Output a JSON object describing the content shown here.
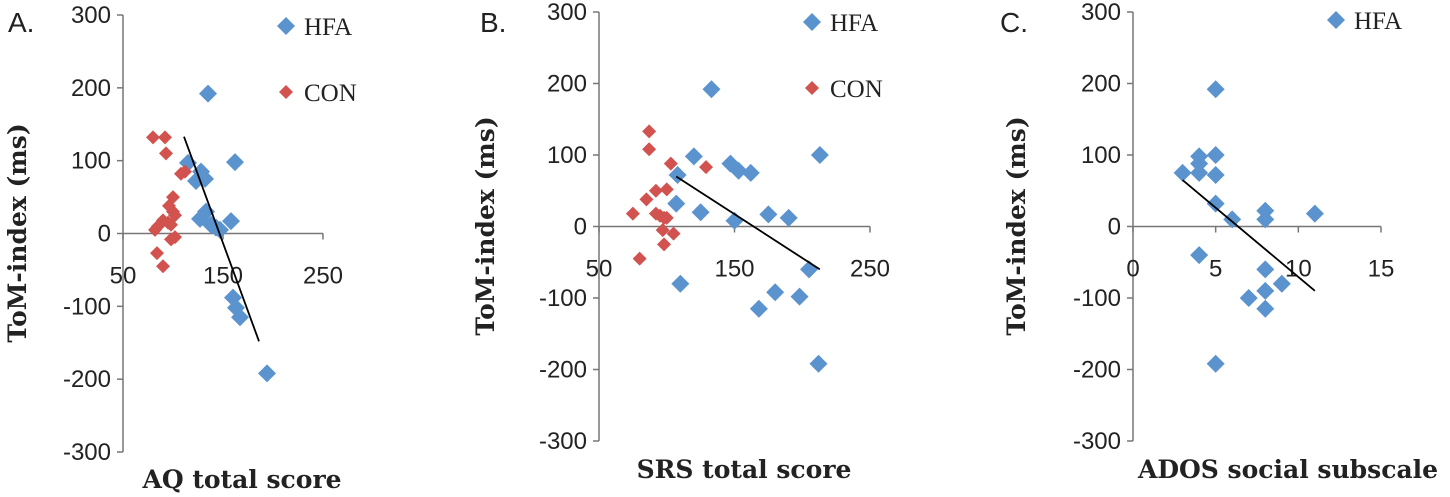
{
  "colors": {
    "HFA": "#5b93cf",
    "CON": "#d2524f",
    "axis": "#777777",
    "trend": "#000000"
  },
  "chart_data": [
    {
      "type": "scatter",
      "panel_label": "A.",
      "xlabel": "AQ total score",
      "ylabel": "ToM-index (ms)",
      "xlim": [
        50,
        250
      ],
      "ylim": [
        -300,
        300
      ],
      "xticks": [
        "50",
        "150",
        "250"
      ],
      "yticks": [
        "300",
        "200",
        "100",
        "0",
        "-100",
        "-200",
        "-300"
      ],
      "legend": [
        "HFA",
        "CON"
      ],
      "series": [
        {
          "name": "HFA",
          "points": [
            [
              135,
              192
            ],
            [
              115,
              97
            ],
            [
              123,
              72
            ],
            [
              128,
              85
            ],
            [
              132,
              75
            ],
            [
              133,
              30
            ],
            [
              127,
              20
            ],
            [
              138,
              12
            ],
            [
              143,
              8
            ],
            [
              147,
              5
            ],
            [
              162,
              98
            ],
            [
              158,
              17
            ],
            [
              160,
              -88
            ],
            [
              163,
              -102
            ],
            [
              167,
              -115
            ],
            [
              194,
              -192
            ]
          ]
        },
        {
          "name": "CON",
          "points": [
            [
              80,
              132
            ],
            [
              92,
              132
            ],
            [
              93,
              110
            ],
            [
              108,
              82
            ],
            [
              112,
              85
            ],
            [
              100,
              50
            ],
            [
              96,
              38
            ],
            [
              100,
              30
            ],
            [
              102,
              25
            ],
            [
              90,
              18
            ],
            [
              95,
              15
            ],
            [
              85,
              10
            ],
            [
              82,
              5
            ],
            [
              98,
              12
            ],
            [
              102,
              -5
            ],
            [
              98,
              -8
            ],
            [
              84,
              -27
            ],
            [
              90,
              -45
            ]
          ]
        }
      ],
      "trendline": [
        [
          111,
          133
        ],
        [
          186,
          -148
        ]
      ]
    },
    {
      "type": "scatter",
      "panel_label": "B.",
      "xlabel": "SRS total score",
      "ylabel": "ToM-index (ms)",
      "xlim": [
        50,
        250
      ],
      "ylim": [
        -300,
        300
      ],
      "xticks": [
        "50",
        "150",
        "250"
      ],
      "yticks": [
        "300",
        "200",
        "100",
        "0",
        "-100",
        "-200",
        "-300"
      ],
      "legend": [
        "HFA",
        "CON"
      ],
      "series": [
        {
          "name": "HFA",
          "points": [
            [
              133,
              192
            ],
            [
              120,
              98
            ],
            [
              108,
              72
            ],
            [
              147,
              88
            ],
            [
              153,
              78
            ],
            [
              162,
              75
            ],
            [
              107,
              32
            ],
            [
              125,
              20
            ],
            [
              150,
              8
            ],
            [
              175,
              17
            ],
            [
              190,
              12
            ],
            [
              110,
              -80
            ],
            [
              180,
              -92
            ],
            [
              198,
              -98
            ],
            [
              168,
              -115
            ],
            [
              205,
              -60
            ],
            [
              213,
              100
            ],
            [
              212,
              -192
            ]
          ]
        },
        {
          "name": "CON",
          "points": [
            [
              87,
              133
            ],
            [
              87,
              108
            ],
            [
              103,
              88
            ],
            [
              129,
              83
            ],
            [
              92,
              50
            ],
            [
              100,
              52
            ],
            [
              85,
              38
            ],
            [
              95,
              15
            ],
            [
              98,
              12
            ],
            [
              92,
              18
            ],
            [
              100,
              12
            ],
            [
              75,
              18
            ],
            [
              97,
              -5
            ],
            [
              105,
              -10
            ],
            [
              98,
              -25
            ],
            [
              80,
              -45
            ]
          ]
        }
      ],
      "trendline": [
        [
          107,
          70
        ],
        [
          213,
          -60
        ]
      ]
    },
    {
      "type": "scatter",
      "panel_label": "C.",
      "xlabel": "ADOS social subscale",
      "ylabel": "ToM-index (ms)",
      "xlim": [
        0,
        15
      ],
      "ylim": [
        -300,
        300
      ],
      "xticks": [
        "0",
        "5",
        "10",
        "15"
      ],
      "yticks": [
        "300",
        "200",
        "100",
        "0",
        "-100",
        "-200",
        "-300"
      ],
      "legend": [
        "HFA"
      ],
      "series": [
        {
          "name": "HFA",
          "points": [
            [
              5,
              192
            ],
            [
              4,
              98
            ],
            [
              5,
              100
            ],
            [
              4,
              88
            ],
            [
              3,
              75
            ],
            [
              4,
              75
            ],
            [
              5,
              72
            ],
            [
              5,
              32
            ],
            [
              6,
              10
            ],
            [
              8,
              22
            ],
            [
              8,
              10
            ],
            [
              11,
              18
            ],
            [
              4,
              -40
            ],
            [
              8,
              -60
            ],
            [
              7,
              -100
            ],
            [
              8,
              -90
            ],
            [
              9,
              -80
            ],
            [
              8,
              -115
            ],
            [
              5,
              -192
            ]
          ]
        }
      ],
      "trendline": [
        [
          3,
          65
        ],
        [
          11,
          -90
        ]
      ]
    }
  ]
}
